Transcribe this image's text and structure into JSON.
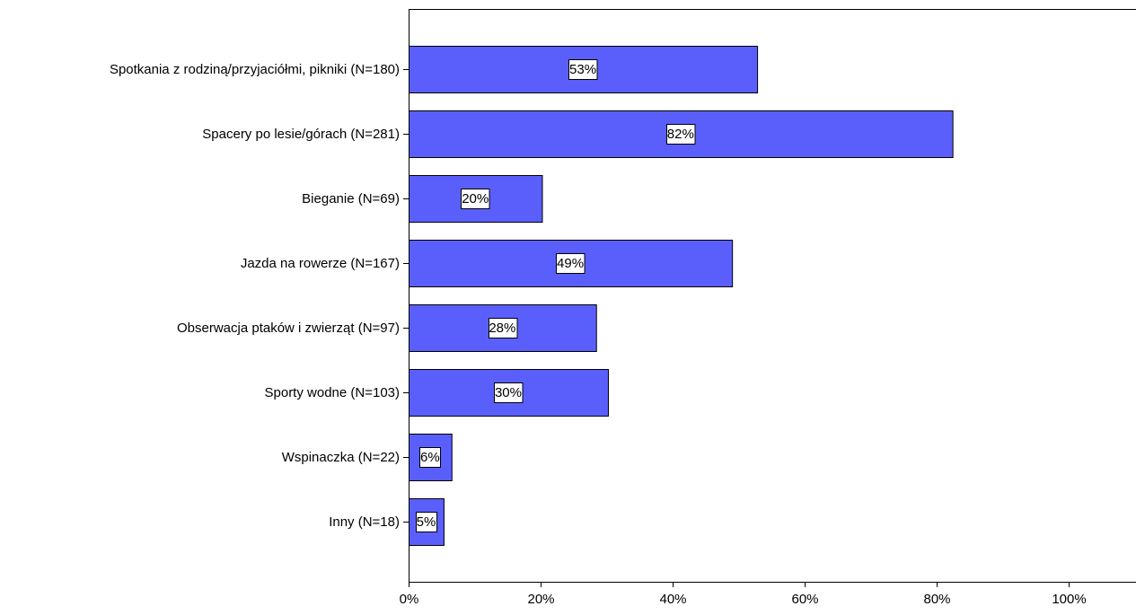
{
  "chart_data": {
    "type": "bar",
    "orientation": "horizontal",
    "categories": [
      "Spotkania z rodziną/przyjaciółmi, pikniki (N=180)",
      "Spacery po lesie/górach (N=281)",
      "Bieganie (N=69)",
      "Jazda na rowerze (N=167)",
      "Obserwacja ptaków i zwierząt (N=97)",
      "Sporty wodne (N=103)",
      "Wspinaczka (N=22)",
      "Inny (N=18)"
    ],
    "values": [
      52.8,
      82.4,
      20.2,
      49.0,
      28.4,
      30.2,
      6.5,
      5.3
    ],
    "data_labels": [
      "53%",
      "82%",
      "20%",
      "49%",
      "28%",
      "30%",
      "6%",
      "5%"
    ],
    "x_ticks": [
      0,
      20,
      40,
      60,
      80,
      100
    ],
    "x_tick_labels": [
      "0%",
      "20%",
      "40%",
      "60%",
      "80%",
      "100%"
    ],
    "xlim": [
      0,
      110
    ],
    "xlabel": "",
    "ylabel": "",
    "title": "",
    "grid": false,
    "legend": "none",
    "bar_color": "#5a5ffc",
    "bar_edge_color": "#000000"
  }
}
